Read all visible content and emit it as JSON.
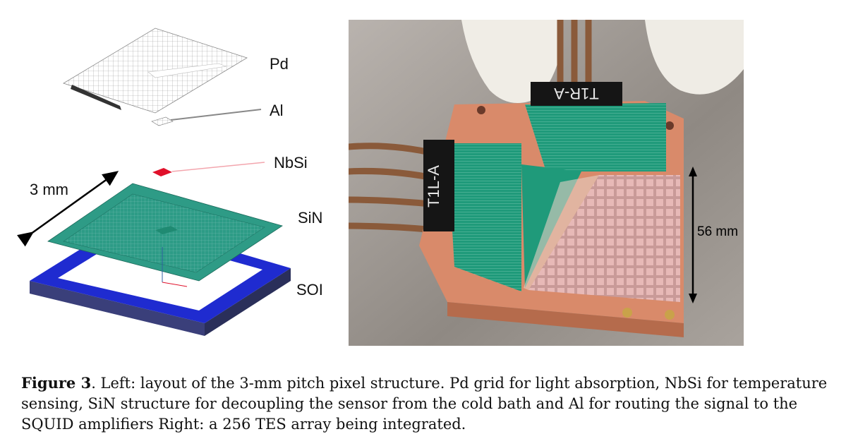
{
  "left_labels": {
    "pd": "Pd",
    "al": "Al",
    "nbsi": "NbSi",
    "sin": "SiN",
    "soi": "SOI",
    "dimension": "3 mm"
  },
  "right_labels": {
    "dimension": "56 mm",
    "connector_left": "T1L-A",
    "connector_top": "T1R-A"
  },
  "caption": {
    "label": "Figure 3",
    "text": ". Left: layout of the 3-mm pitch pixel structure. Pd grid for light absorption, NbSi for temperature sensing, SiN structure for decoupling the sensor from the cold bath and Al for routing the signal to the SQUID amplifiers Right: a 256 TES array being integrated."
  },
  "colors": {
    "sin": "#2e9b86",
    "soi": "#1f2bd0",
    "nbsi": "#e0102a",
    "copper": "#d98a6a",
    "pcb": "#1f9a7a"
  }
}
